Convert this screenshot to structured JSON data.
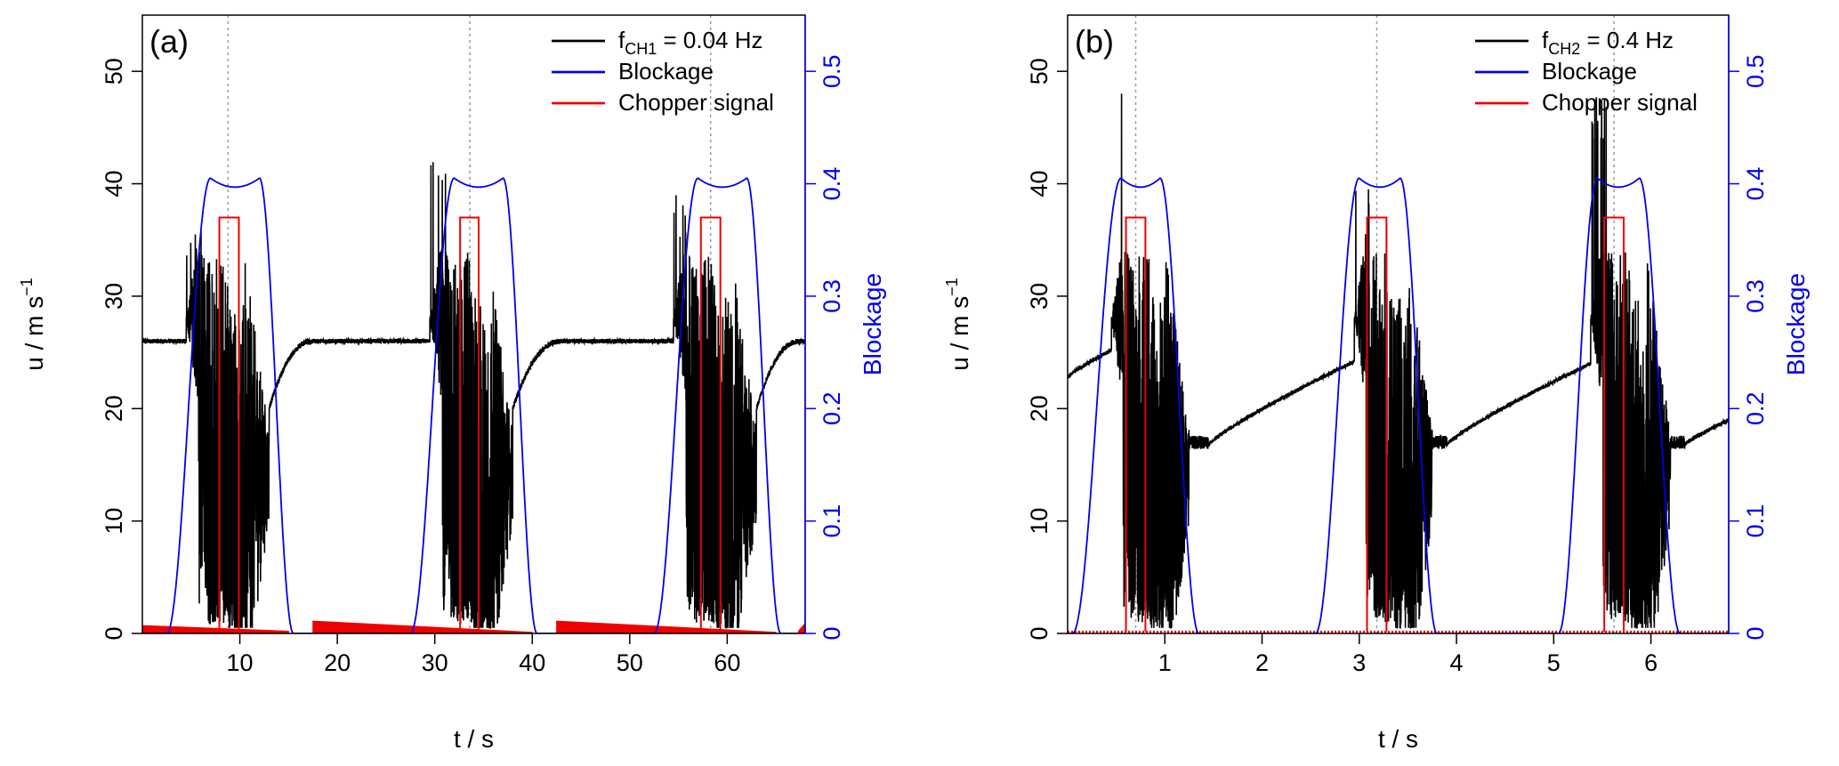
{
  "figure": {
    "panels": [
      "(a)",
      "(b)"
    ]
  },
  "chart_data": [
    {
      "type": "line",
      "panel_label": "(a)",
      "xlabel": "t / s",
      "ylabel": "u / m s",
      "ylabel_sup": "−1",
      "y2label": "Blockage",
      "xlim": [
        0,
        68
      ],
      "ylim": [
        0,
        55
      ],
      "y2lim": [
        0,
        0.55
      ],
      "xticks": [
        10,
        20,
        30,
        40,
        50,
        60
      ],
      "yticks": [
        0,
        10,
        20,
        30,
        40,
        50
      ],
      "y2ticks": [
        0,
        0.1,
        0.2,
        0.3,
        0.4,
        0.5
      ],
      "ytick_labels": [
        "0",
        "10",
        "20",
        "30",
        "40",
        "50"
      ],
      "y2tick_labels": [
        "0",
        "0.1",
        "0.2",
        "0.3",
        "0.4",
        "0.5"
      ],
      "xtick_labels": [
        "10",
        "20",
        "30",
        "40",
        "50",
        "60"
      ],
      "legend": {
        "position": "top-right",
        "entries": [
          {
            "name": "f",
            "sub": "CH1",
            "suffix": " = 0.04 Hz",
            "color": "#000000"
          },
          {
            "name": "Blockage",
            "sub": "",
            "suffix": "",
            "color": "#0000ee"
          },
          {
            "name": "Chopper signal",
            "sub": "",
            "suffix": "",
            "color": "#ee0000"
          }
        ]
      },
      "colors": {
        "velocity": "#000000",
        "blockage": "#0000ee",
        "chopper": "#ee0000",
        "marker": "#9a9a9a"
      },
      "period": 25,
      "events": [
        {
          "blockage_rise": 2.5,
          "blockage_top": 7.0,
          "blockage_fall": 12.0,
          "blockage_end": 15.5,
          "peak": 0.405,
          "chopper_on": 7.9,
          "chopper_off": 9.9,
          "chopper_level": 37,
          "center": 8.8,
          "turb_start": 4.5,
          "turb_end": 13.0,
          "recover_end": 17.5,
          "pre_max": 37
        },
        {
          "blockage_rise": 27.5,
          "blockage_top": 32.0,
          "blockage_fall": 37.0,
          "blockage_end": 40.5,
          "peak": 0.405,
          "chopper_on": 32.6,
          "chopper_off": 34.5,
          "chopper_level": 37,
          "center": 33.6,
          "turb_start": 29.5,
          "turb_end": 38.0,
          "recover_end": 43.0,
          "pre_max": 44
        },
        {
          "blockage_rise": 52.5,
          "blockage_top": 57.0,
          "blockage_fall": 62.0,
          "blockage_end": 65.5,
          "peak": 0.405,
          "chopper_on": 57.3,
          "chopper_off": 59.3,
          "chopper_level": 37,
          "center": 58.3,
          "turb_start": 54.5,
          "turb_end": 63.0,
          "recover_end": 67.5,
          "pre_max": 39
        }
      ],
      "baseline_velocity": 26,
      "chopper_ramps": [
        {
          "t0": 0,
          "t1": 15,
          "a": 0.7,
          "b": 0.2
        },
        {
          "t0": 17.5,
          "t1": 40,
          "a": 1.1,
          "b": 0.1
        },
        {
          "t0": 42.5,
          "t1": 65,
          "a": 1.1,
          "b": 0.1
        },
        {
          "t0": 67.3,
          "t1": 68,
          "a": 0.2,
          "b": 0.9
        }
      ]
    },
    {
      "type": "line",
      "panel_label": "(b)",
      "xlabel": "t / s",
      "ylabel": "u / m s",
      "ylabel_sup": "−1",
      "y2label": "Blockage",
      "xlim": [
        0,
        6.8
      ],
      "ylim": [
        0,
        55
      ],
      "y2lim": [
        0,
        0.55
      ],
      "xticks": [
        1,
        2,
        3,
        4,
        5,
        6
      ],
      "yticks": [
        0,
        10,
        20,
        30,
        40,
        50
      ],
      "y2ticks": [
        0,
        0.1,
        0.2,
        0.3,
        0.4,
        0.5
      ],
      "ytick_labels": [
        "0",
        "10",
        "20",
        "30",
        "40",
        "50"
      ],
      "y2tick_labels": [
        "0",
        "0.1",
        "0.2",
        "0.3",
        "0.4",
        "0.5"
      ],
      "xtick_labels": [
        "1",
        "2",
        "3",
        "4",
        "5",
        "6"
      ],
      "legend": {
        "position": "top-right",
        "entries": [
          {
            "name": "f",
            "sub": "CH2",
            "suffix": " = 0.4 Hz",
            "color": "#000000"
          },
          {
            "name": "Blockage",
            "sub": "",
            "suffix": "",
            "color": "#0000ee"
          },
          {
            "name": "Chopper signal",
            "sub": "",
            "suffix": "",
            "color": "#ee0000"
          }
        ]
      },
      "colors": {
        "velocity": "#000000",
        "blockage": "#0000ee",
        "chopper": "#ee0000",
        "marker": "#9a9a9a"
      },
      "period": 2.5,
      "events": [
        {
          "blockage_rise": 0.05,
          "blockage_top": 0.55,
          "blockage_fall": 0.95,
          "blockage_end": 1.35,
          "peak": 0.405,
          "chopper_on": 0.6,
          "chopper_off": 0.8,
          "chopper_level": 37,
          "center": 0.7,
          "turb_start": 0.45,
          "turb_end": 1.25,
          "recover_end": 1.45,
          "pre_max": 50.5
        },
        {
          "blockage_rise": 2.55,
          "blockage_top": 3.0,
          "blockage_fall": 3.42,
          "blockage_end": 3.8,
          "peak": 0.405,
          "chopper_on": 3.08,
          "chopper_off": 3.28,
          "chopper_level": 37,
          "center": 3.18,
          "turb_start": 2.95,
          "turb_end": 3.75,
          "recover_end": 3.9,
          "pre_max": 42
        },
        {
          "blockage_rise": 5.05,
          "blockage_top": 5.45,
          "blockage_fall": 5.88,
          "blockage_end": 6.3,
          "peak": 0.405,
          "chopper_on": 5.52,
          "chopper_off": 5.72,
          "chopper_level": 37,
          "center": 5.62,
          "turb_start": 5.38,
          "turb_end": 6.2,
          "recover_end": 6.35,
          "pre_max": 48
        }
      ],
      "velocity_ramp": [
        {
          "t0": 0.0,
          "t1": 0.45,
          "v0": 22.8,
          "v1": 25.2
        },
        {
          "t0": 1.45,
          "t1": 2.95,
          "v0": 16.8,
          "v1": 24.2
        },
        {
          "t0": 3.9,
          "t1": 5.38,
          "v0": 16.8,
          "v1": 24.0
        },
        {
          "t0": 6.35,
          "t1": 6.8,
          "v0": 16.8,
          "v1": 19.0
        }
      ]
    }
  ]
}
